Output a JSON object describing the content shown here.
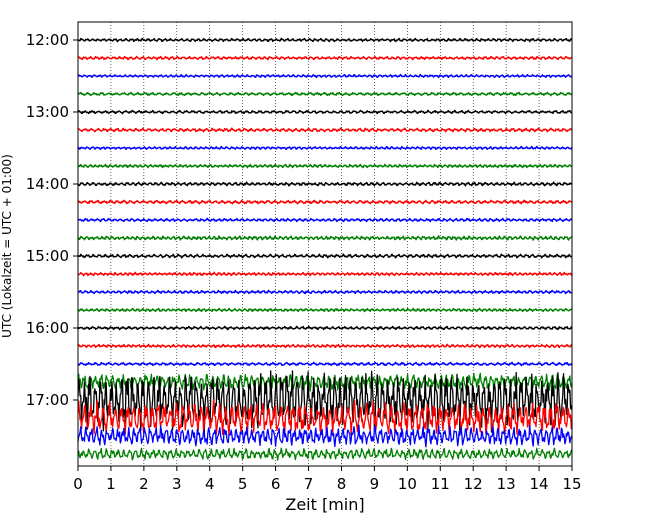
{
  "chart_data": {
    "type": "line",
    "title": "",
    "xlabel": "Zeit  [min]",
    "ylabel": "UTC (Lokalzeit = UTC + 01:00)",
    "xlim": [
      0,
      15
    ],
    "x_ticks": [
      "0",
      "1",
      "2",
      "3",
      "4",
      "5",
      "6",
      "7",
      "8",
      "9",
      "10",
      "11",
      "12",
      "13",
      "14",
      "15"
    ],
    "y_ticks": [
      "12:00",
      "13:00",
      "14:00",
      "15:00",
      "16:00",
      "17:00"
    ],
    "grid_x": true,
    "grid_linestyle": "dotted",
    "trace_colors": [
      "#000000",
      "#ff0000",
      "#0000ff",
      "#008000"
    ],
    "traces": [
      {
        "start": "12:00",
        "amplitude": 0.08
      },
      {
        "start": "12:15",
        "amplitude": 0.08
      },
      {
        "start": "12:30",
        "amplitude": 0.07
      },
      {
        "start": "12:45",
        "amplitude": 0.08
      },
      {
        "start": "13:00",
        "amplitude": 0.08
      },
      {
        "start": "13:15",
        "amplitude": 0.09
      },
      {
        "start": "13:30",
        "amplitude": 0.07
      },
      {
        "start": "13:45",
        "amplitude": 0.08
      },
      {
        "start": "14:00",
        "amplitude": 0.09
      },
      {
        "start": "14:15",
        "amplitude": 0.09
      },
      {
        "start": "14:30",
        "amplitude": 0.08
      },
      {
        "start": "14:45",
        "amplitude": 0.1
      },
      {
        "start": "15:00",
        "amplitude": 0.09
      },
      {
        "start": "15:15",
        "amplitude": 0.08
      },
      {
        "start": "15:30",
        "amplitude": 0.08
      },
      {
        "start": "15:45",
        "amplitude": 0.08
      },
      {
        "start": "16:00",
        "amplitude": 0.08
      },
      {
        "start": "16:15",
        "amplitude": 0.08
      },
      {
        "start": "16:30",
        "amplitude": 0.08
      },
      {
        "start": "16:45",
        "amplitude": 0.45
      },
      {
        "start": "17:00",
        "amplitude": 1.6
      },
      {
        "start": "17:15",
        "amplitude": 0.9
      },
      {
        "start": "17:30",
        "amplitude": 0.55
      },
      {
        "start": "17:45",
        "amplitude": 0.3
      }
    ]
  }
}
